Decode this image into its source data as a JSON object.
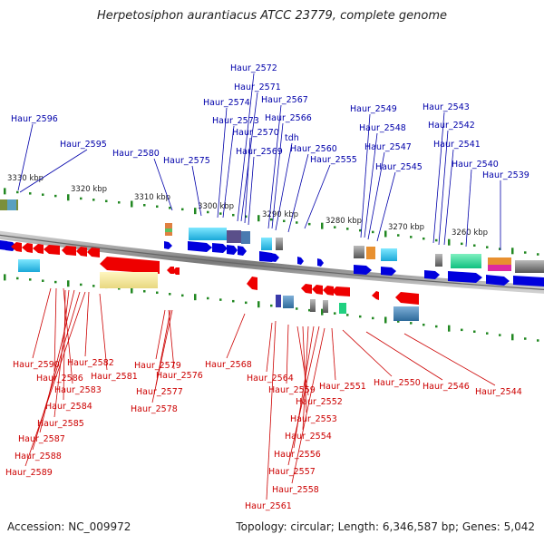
{
  "title": "Herpetosiphon aurantiacus ATCC 23779, complete genome",
  "accession": "Accession: NC_009972",
  "summary": "Topology: circular; Length: 6,346,587 bp; Genes: 5,042",
  "colors": {
    "forward": "#0000dd",
    "reverse": "#ee0000",
    "label_forward": "#0000aa",
    "label_reverse": "#cc0000",
    "backbone": "#888888"
  },
  "kbp_labels": [
    "3330 kbp",
    "3320 kbp",
    "3310 kbp",
    "3300 kbp",
    "3290 kbp",
    "3280 kbp",
    "3270 kbp",
    "3260 kbp"
  ],
  "top_labels": [
    "Haur_2596",
    "Haur_2595",
    "Haur_2580",
    "Haur_2575",
    "Haur_2574",
    "Haur_2573",
    "Haur_2572",
    "Haur_2571",
    "Haur_2570",
    "Haur_2569",
    "Haur_2567",
    "Haur_2566",
    "tdh",
    "Haur_2560",
    "Haur_2555",
    "Haur_2549",
    "Haur_2548",
    "Haur_2547",
    "Haur_2545",
    "Haur_2543",
    "Haur_2542",
    "Haur_2541",
    "Haur_2540",
    "Haur_2539"
  ],
  "bottom_labels": [
    "Haur_2590",
    "Haur_2586",
    "Haur_2583",
    "Haur_2584",
    "Haur_2585",
    "Haur_2587",
    "Haur_2588",
    "Haur_2589",
    "Haur_2582",
    "Haur_2581",
    "Haur_2579",
    "Haur_2576",
    "Haur_2577",
    "Haur_2578",
    "Haur_2568",
    "Haur_2564",
    "Haur_2559",
    "Haur_2552",
    "Haur_2553",
    "Haur_2554",
    "Haur_2556",
    "Haur_2557",
    "Haur_2558",
    "Haur_2561",
    "Haur_2551",
    "Haur_2550",
    "Haur_2546",
    "Haur_2544"
  ]
}
